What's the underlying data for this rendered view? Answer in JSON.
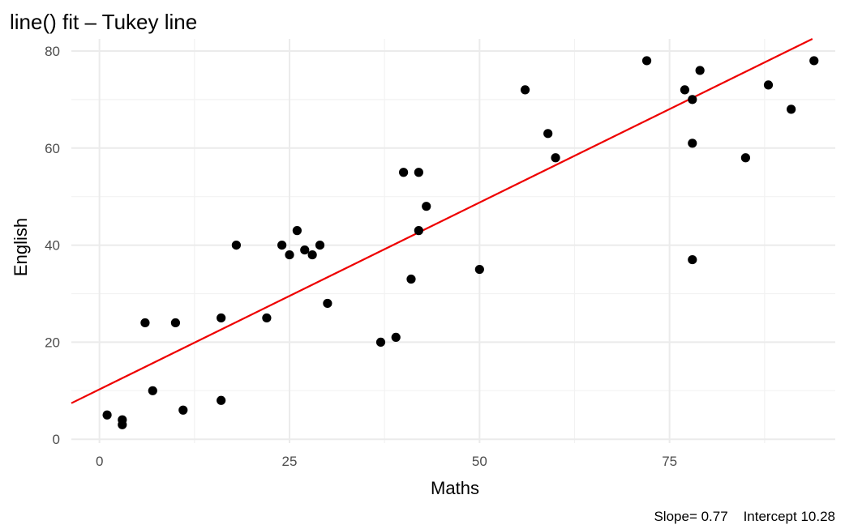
{
  "chart_data": {
    "type": "scatter",
    "title": "line() fit – Tukey line",
    "xlabel": "Maths",
    "ylabel": "English",
    "xlim": [
      -3.7,
      96.8
    ],
    "ylim": [
      -0.8,
      82.5
    ],
    "x_ticks": [
      0,
      25,
      50,
      75
    ],
    "y_ticks": [
      0,
      20,
      40,
      60,
      80
    ],
    "grid": true,
    "points": [
      {
        "x": 1,
        "y": 5
      },
      {
        "x": 3,
        "y": 4
      },
      {
        "x": 3,
        "y": 3
      },
      {
        "x": 6,
        "y": 24
      },
      {
        "x": 7,
        "y": 10
      },
      {
        "x": 10,
        "y": 24
      },
      {
        "x": 11,
        "y": 6
      },
      {
        "x": 16,
        "y": 25
      },
      {
        "x": 16,
        "y": 8
      },
      {
        "x": 18,
        "y": 40
      },
      {
        "x": 22,
        "y": 25
      },
      {
        "x": 24,
        "y": 40
      },
      {
        "x": 25,
        "y": 38
      },
      {
        "x": 26,
        "y": 43
      },
      {
        "x": 27,
        "y": 39
      },
      {
        "x": 28,
        "y": 38
      },
      {
        "x": 29,
        "y": 40
      },
      {
        "x": 30,
        "y": 28
      },
      {
        "x": 37,
        "y": 20
      },
      {
        "x": 39,
        "y": 21
      },
      {
        "x": 40,
        "y": 55
      },
      {
        "x": 41,
        "y": 33
      },
      {
        "x": 42,
        "y": 55
      },
      {
        "x": 42,
        "y": 43
      },
      {
        "x": 43,
        "y": 48
      },
      {
        "x": 50,
        "y": 35
      },
      {
        "x": 56,
        "y": 72
      },
      {
        "x": 59,
        "y": 63
      },
      {
        "x": 60,
        "y": 58
      },
      {
        "x": 72,
        "y": 78
      },
      {
        "x": 77,
        "y": 72
      },
      {
        "x": 78,
        "y": 70
      },
      {
        "x": 78,
        "y": 61
      },
      {
        "x": 78,
        "y": 37
      },
      {
        "x": 79,
        "y": 76
      },
      {
        "x": 85,
        "y": 58
      },
      {
        "x": 88,
        "y": 73
      },
      {
        "x": 91,
        "y": 68
      },
      {
        "x": 94,
        "y": 78
      }
    ],
    "fit_line": {
      "slope": 0.77,
      "intercept": 10.28,
      "color": "#ee0000"
    },
    "point_color": "#000000",
    "caption": "Slope= 0.77    Intercept 10.28"
  }
}
